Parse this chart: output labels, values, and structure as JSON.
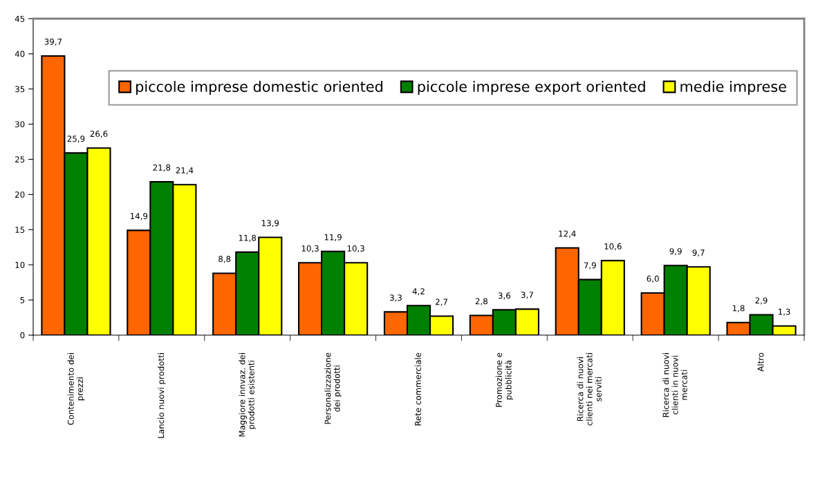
{
  "chart_data": {
    "type": "bar",
    "categories": [
      "Contenimento dei\nprezzi",
      "Lancio nuovi prodotti",
      "Maggiore innvaz. dei\nprodotti esistenti",
      "Personalizzazione\ndei prodotti",
      "Rete commerciale",
      "Promozione e\npubblicità",
      "Ricerca di nuovi\nclienti nei mercati\nserviti",
      "Ricerca di nuovi\nclienti in nuovi\nmercati",
      "Altro"
    ],
    "series": [
      {
        "name": "piccole imprese domestic oriented",
        "color": "#ff6600",
        "values": [
          39.7,
          14.9,
          8.8,
          10.3,
          3.3,
          2.8,
          12.4,
          6.0,
          1.8
        ],
        "value_labels": [
          "39,7",
          "14,9",
          "8,8",
          "10,3",
          "3,3",
          "2,8",
          "12,4",
          "6,0",
          "1,8"
        ]
      },
      {
        "name": "piccole imprese export oriented",
        "color": "#008000",
        "values": [
          25.9,
          21.8,
          11.8,
          11.9,
          4.2,
          3.6,
          7.9,
          9.9,
          2.9
        ],
        "value_labels": [
          "25,9",
          "21,8",
          "11,8",
          "11,9",
          "4,2",
          "3,6",
          "7,9",
          "9,9",
          "2,9"
        ]
      },
      {
        "name": "medie imprese",
        "color": "#ffff00",
        "values": [
          26.6,
          21.4,
          13.9,
          10.3,
          2.7,
          3.7,
          10.6,
          9.7,
          1.3
        ],
        "value_labels": [
          "26,6",
          "21,4",
          "13,9",
          "10,3",
          "2,7",
          "3,7",
          "10,6",
          "9,7",
          "1,3"
        ]
      }
    ],
    "ylim": [
      0,
      45
    ],
    "yticks": [
      0,
      5,
      10,
      15,
      20,
      25,
      30,
      35,
      40,
      45
    ],
    "grid": false,
    "legend": "top right"
  }
}
